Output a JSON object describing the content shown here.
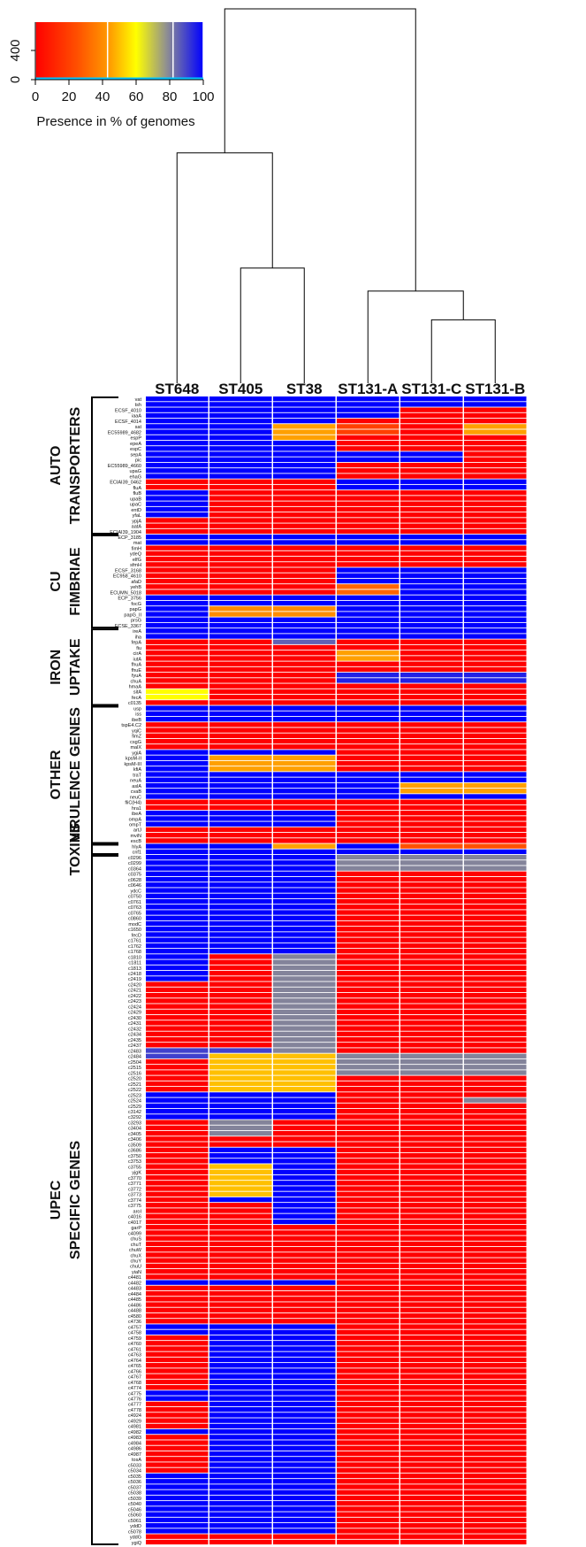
{
  "chart_data": {
    "type": "heatmap",
    "columns": [
      "ST648",
      "ST405",
      "ST38",
      "ST131-A",
      "ST131-C",
      "ST131-B"
    ],
    "legend": {
      "xlabel": "Presence in % of genomes",
      "xticks": [
        "0",
        "20",
        "40",
        "60",
        "80",
        "100"
      ],
      "yticks": [
        "0",
        "400"
      ],
      "x_range": [
        0,
        100
      ],
      "histogram_peaks_at": [
        0,
        43,
        82,
        100
      ]
    },
    "colors": {
      "scale": [
        "#ff0000",
        "#ff5000",
        "#ffa000",
        "#ffff00",
        "#909090",
        "#0000ff"
      ],
      "line": "#000000",
      "separator": "#ffffff",
      "legend_marker": "#00c8ff"
    },
    "dendrogram": {
      "order": [
        "ST648",
        "ST405",
        "ST38",
        "ST131-A",
        "ST131-C",
        "ST131-B"
      ],
      "merges": [
        {
          "left": "ST131-C",
          "right": "ST131-B",
          "height": 0.11
        },
        {
          "left": "ST405",
          "right": "ST38",
          "height": 0.2
        },
        {
          "left": "ST131-A",
          "right": "ST131-C+ST131-B",
          "height": 0.16
        },
        {
          "left": "ST648",
          "right": "ST405+ST38",
          "height": 0.4
        },
        {
          "left": "ST648+ST405+ST38",
          "right": "ST131",
          "height": 0.65
        }
      ]
    },
    "categories": [
      {
        "name": "AUTO TRANSPORTERS",
        "lines": [
          "AUTO",
          "TRANSPORTERS"
        ],
        "genes": [
          "vat",
          "tsh",
          "ECSF_4010",
          "iaaA",
          "ECSF_4014",
          "sat",
          "EC55989_4682",
          "espP",
          "epeA",
          "espC",
          "sepA",
          "pic",
          "EC55989_4660",
          "upaG",
          "ehaG",
          "ECIAI39_0462",
          "fluA",
          "fluB",
          "upaB",
          "upaC",
          "entD",
          "yfaL",
          "ypjA",
          "aatA",
          "ECIAI39_1904"
        ]
      },
      {
        "name": "CU FIMBRIAE",
        "lines": [
          "CU",
          "FIMBRIAE"
        ],
        "genes": [
          "ECP_3185",
          "mat",
          "fimH",
          "ydeQ",
          "elfG",
          "sfmH",
          "ECSF_3168",
          "EC958_4610",
          "afaD",
          "yehB",
          "ECUMN_5018",
          "ECP_3756",
          "focG",
          "papG",
          "papG_II",
          "prsG",
          "ECSE_3367"
        ]
      },
      {
        "name": "IRON UPTAKE",
        "lines": [
          "IRON",
          "UPTAKE"
        ],
        "genes": [
          "ireA",
          "iha",
          "fepA",
          "fiu",
          "cirA",
          "iutA",
          "fhuA",
          "fhuE",
          "fyuA",
          "chuA",
          "hmaA",
          "sitA",
          "fecA",
          "c0135"
        ]
      },
      {
        "name": "OTHER VIRULENCE GENES",
        "lines": [
          "OTHER",
          "VIRULENCE GENES"
        ],
        "genes": [
          "usp",
          "iss",
          "ibeB",
          "tspE4.C2",
          "yqiC",
          "fimZ",
          "csgG",
          "malX",
          "ygiA",
          "kpsM-II",
          "kpsM-III",
          "kfiA",
          "traT",
          "neuA",
          "aslA",
          "cvaB",
          "neuC",
          "fliC(H4)",
          "hra1",
          "ibeA",
          "ompA",
          "ompT",
          "artJ",
          "mviN",
          "escB"
        ]
      },
      {
        "name": "TOXINS",
        "lines": [
          "TOXINS"
        ],
        "genes": [
          "hlyA",
          "cnf1"
        ]
      },
      {
        "name": "UPEC SPECIFIC GENES",
        "lines": [
          "UPEC",
          "SPECIFIC GENES"
        ],
        "genes": [
          "c0296",
          "c0299",
          "c0364",
          "c0375",
          "c0628",
          "c0646",
          "ydcC",
          "c0750",
          "c0761",
          "c0763",
          "c0765",
          "c0860",
          "modC",
          "c1650",
          "fecD",
          "c1761",
          "c1762",
          "c1768",
          "c1810",
          "c1811",
          "c1813",
          "c2418",
          "c2419",
          "c2420",
          "c2421",
          "c2422",
          "c2423",
          "c2424",
          "c2429",
          "c2430",
          "c2431",
          "c2432",
          "c2434",
          "c2435",
          "c2437",
          "c2483",
          "c2484",
          "c2504",
          "c2515",
          "c2516",
          "c2520",
          "c2521",
          "c2522",
          "c2523",
          "c2524",
          "c2529",
          "c3142",
          "c3292",
          "c3293",
          "c3404",
          "c3405",
          "c3406",
          "c3509",
          "c3686",
          "c3750",
          "c3753",
          "c3755",
          "yjgK",
          "c3770",
          "c3771",
          "c3772",
          "c3773",
          "c3774",
          "c3775",
          "aroI",
          "c4016",
          "c4017",
          "garP",
          "c4099",
          "chuS",
          "chuT",
          "chuW",
          "chuX",
          "chuY",
          "chuU",
          "yiaN",
          "c4481",
          "c4482",
          "c4483",
          "c4484",
          "c4485",
          "c4486",
          "c4488",
          "c4580",
          "c4736",
          "c4757",
          "c4758",
          "c4759",
          "c4760",
          "c4761",
          "c4763",
          "c4764",
          "c4765",
          "c4766",
          "c4767",
          "c4768",
          "c4774",
          "c4775",
          "c4776",
          "c4777",
          "c4778",
          "c4924",
          "c4929",
          "c4981",
          "c4982",
          "c4983",
          "c4984",
          "c4986",
          "c4987",
          "tosA",
          "c5033",
          "c5034",
          "c5035",
          "c5036",
          "c5037",
          "c5038",
          "c5039",
          "c5040",
          "c5046",
          "c5060",
          "c5061",
          "yddD",
          "c5078",
          "yddG",
          "ygiQ"
        ]
      }
    ],
    "blocks": [
      {
        "cols": [
          0,
          1,
          2
        ],
        "from": 0,
        "to": 24,
        "value": 100
      },
      {
        "cols": [
          3,
          4,
          5
        ],
        "from": 0,
        "to": 24,
        "value": 0
      },
      {
        "cols": [
          0,
          1
        ],
        "from": 5,
        "to": 11,
        "value": 100
      },
      {
        "cols": [
          2
        ],
        "from": 5,
        "to": 7,
        "value": 45
      },
      {
        "cols": [
          3
        ],
        "from": 0,
        "to": 3,
        "value": 100
      },
      {
        "cols": [
          3
        ],
        "from": 5,
        "to": 6,
        "value": 20
      },
      {
        "cols": [
          4,
          5
        ],
        "from": 0,
        "to": 1,
        "value": 100
      },
      {
        "cols": [
          5
        ],
        "from": 5,
        "to": 6,
        "value": 45
      },
      {
        "cols": [
          3,
          4,
          5
        ],
        "from": 15,
        "to": 16,
        "value": 100
      },
      {
        "cols": [
          3,
          4
        ],
        "from": 10,
        "to": 11,
        "value": 100
      },
      {
        "cols": [
          0,
          1,
          2
        ],
        "from": 15,
        "to": 24,
        "value": 0
      },
      {
        "cols": [
          0
        ],
        "from": 17,
        "to": 21,
        "value": 100
      },
      {
        "cols": [
          0,
          1,
          2
        ],
        "from": 25,
        "to": 26,
        "value": 100
      },
      {
        "cols": [
          0,
          1,
          2
        ],
        "from": 27,
        "to": 41,
        "value": 0
      },
      {
        "cols": [
          0,
          1,
          2
        ],
        "from": 36,
        "to": 41,
        "value": 100
      },
      {
        "cols": [
          1,
          2
        ],
        "from": 38,
        "to": 39,
        "value": 40
      },
      {
        "cols": [
          3,
          4,
          5
        ],
        "from": 25,
        "to": 41,
        "value": 100
      },
      {
        "cols": [
          3
        ],
        "from": 34,
        "to": 35,
        "value": 30
      },
      {
        "cols": [
          3,
          4,
          5
        ],
        "from": 27,
        "to": 30,
        "value": 0
      },
      {
        "cols": [
          0,
          1,
          2
        ],
        "from": 42,
        "to": 55,
        "value": 0
      },
      {
        "cols": [
          0,
          1,
          2
        ],
        "from": 42,
        "to": 43,
        "value": 100
      },
      {
        "cols": [
          2
        ],
        "from": 44,
        "to": 44,
        "value": 85
      },
      {
        "cols": [
          0
        ],
        "from": 53,
        "to": 54,
        "value": 60
      },
      {
        "cols": [
          3,
          4,
          5
        ],
        "from": 42,
        "to": 55,
        "value": 0
      },
      {
        "cols": [
          3,
          4,
          5
        ],
        "from": 42,
        "to": 43,
        "value": 100
      },
      {
        "cols": [
          3,
          4,
          5
        ],
        "from": 50,
        "to": 51,
        "value": 95
      },
      {
        "cols": [
          3
        ],
        "from": 46,
        "to": 47,
        "value": 45
      },
      {
        "cols": [
          0,
          1,
          2,
          3,
          4,
          5
        ],
        "from": 56,
        "to": 80,
        "value": 0
      },
      {
        "cols": [
          0,
          1,
          2,
          3,
          4,
          5
        ],
        "from": 56,
        "to": 58,
        "value": 100
      },
      {
        "cols": [
          0,
          1,
          2
        ],
        "from": 64,
        "to": 72,
        "value": 100
      },
      {
        "cols": [
          1,
          2
        ],
        "from": 65,
        "to": 67,
        "value": 45
      },
      {
        "cols": [
          3,
          4,
          5
        ],
        "from": 68,
        "to": 72,
        "value": 100
      },
      {
        "cols": [
          4,
          5
        ],
        "from": 70,
        "to": 71,
        "value": 45
      },
      {
        "cols": [
          0,
          1,
          2
        ],
        "from": 75,
        "to": 77,
        "value": 100
      },
      {
        "cols": [
          0,
          1,
          2,
          3,
          4,
          5
        ],
        "from": 81,
        "to": 82,
        "value": 100
      },
      {
        "cols": [
          2
        ],
        "from": 81,
        "to": 81,
        "value": 45
      },
      {
        "cols": [
          4,
          5
        ],
        "from": 81,
        "to": 81,
        "value": 25
      },
      {
        "cols": [
          0,
          1,
          2
        ],
        "from": 83,
        "to": 205,
        "value": 0
      },
      {
        "cols": [
          3,
          4,
          5
        ],
        "from": 83,
        "to": 205,
        "value": 0
      },
      {
        "cols": [
          0,
          1,
          2
        ],
        "from": 83,
        "to": 100,
        "value": 100
      },
      {
        "cols": [
          0
        ],
        "from": 101,
        "to": 105,
        "value": 100
      },
      {
        "cols": [
          2
        ],
        "from": 101,
        "to": 118,
        "value": 80
      },
      {
        "cols": [
          0,
          1
        ],
        "from": 118,
        "to": 119,
        "value": 90
      },
      {
        "cols": [
          1,
          2
        ],
        "from": 119,
        "to": 126,
        "value": 50
      },
      {
        "cols": [
          0,
          1,
          2
        ],
        "from": 126,
        "to": 130,
        "value": 100
      },
      {
        "cols": [
          1
        ],
        "from": 131,
        "to": 133,
        "value": 80
      },
      {
        "cols": [
          1,
          2
        ],
        "from": 136,
        "to": 145,
        "value": 100
      },
      {
        "cols": [
          1
        ],
        "from": 139,
        "to": 144,
        "value": 50
      },
      {
        "cols": [
          2
        ],
        "from": 146,
        "to": 149,
        "value": 100
      },
      {
        "cols": [
          0,
          1,
          2
        ],
        "from": 150,
        "to": 160,
        "value": 0
      },
      {
        "cols": [
          0,
          1,
          2
        ],
        "from": 160,
        "to": 160,
        "value": 100
      },
      {
        "cols": [
          0,
          1,
          2
        ],
        "from": 168,
        "to": 169,
        "value": 100
      },
      {
        "cols": [
          1,
          2
        ],
        "from": 170,
        "to": 186,
        "value": 100
      },
      {
        "cols": [
          0
        ],
        "from": 180,
        "to": 181,
        "value": 100
      },
      {
        "cols": [
          0,
          1,
          2
        ],
        "from": 187,
        "to": 205,
        "value": 100
      },
      {
        "cols": [
          0
        ],
        "from": 188,
        "to": 194,
        "value": 0
      },
      {
        "cols": [
          3,
          4,
          5
        ],
        "from": 119,
        "to": 122,
        "value": 80
      },
      {
        "cols": [
          3,
          4,
          5
        ],
        "from": 83,
        "to": 85,
        "value": 80
      },
      {
        "cols": [
          5
        ],
        "from": 127,
        "to": 127,
        "value": 80
      }
    ]
  }
}
